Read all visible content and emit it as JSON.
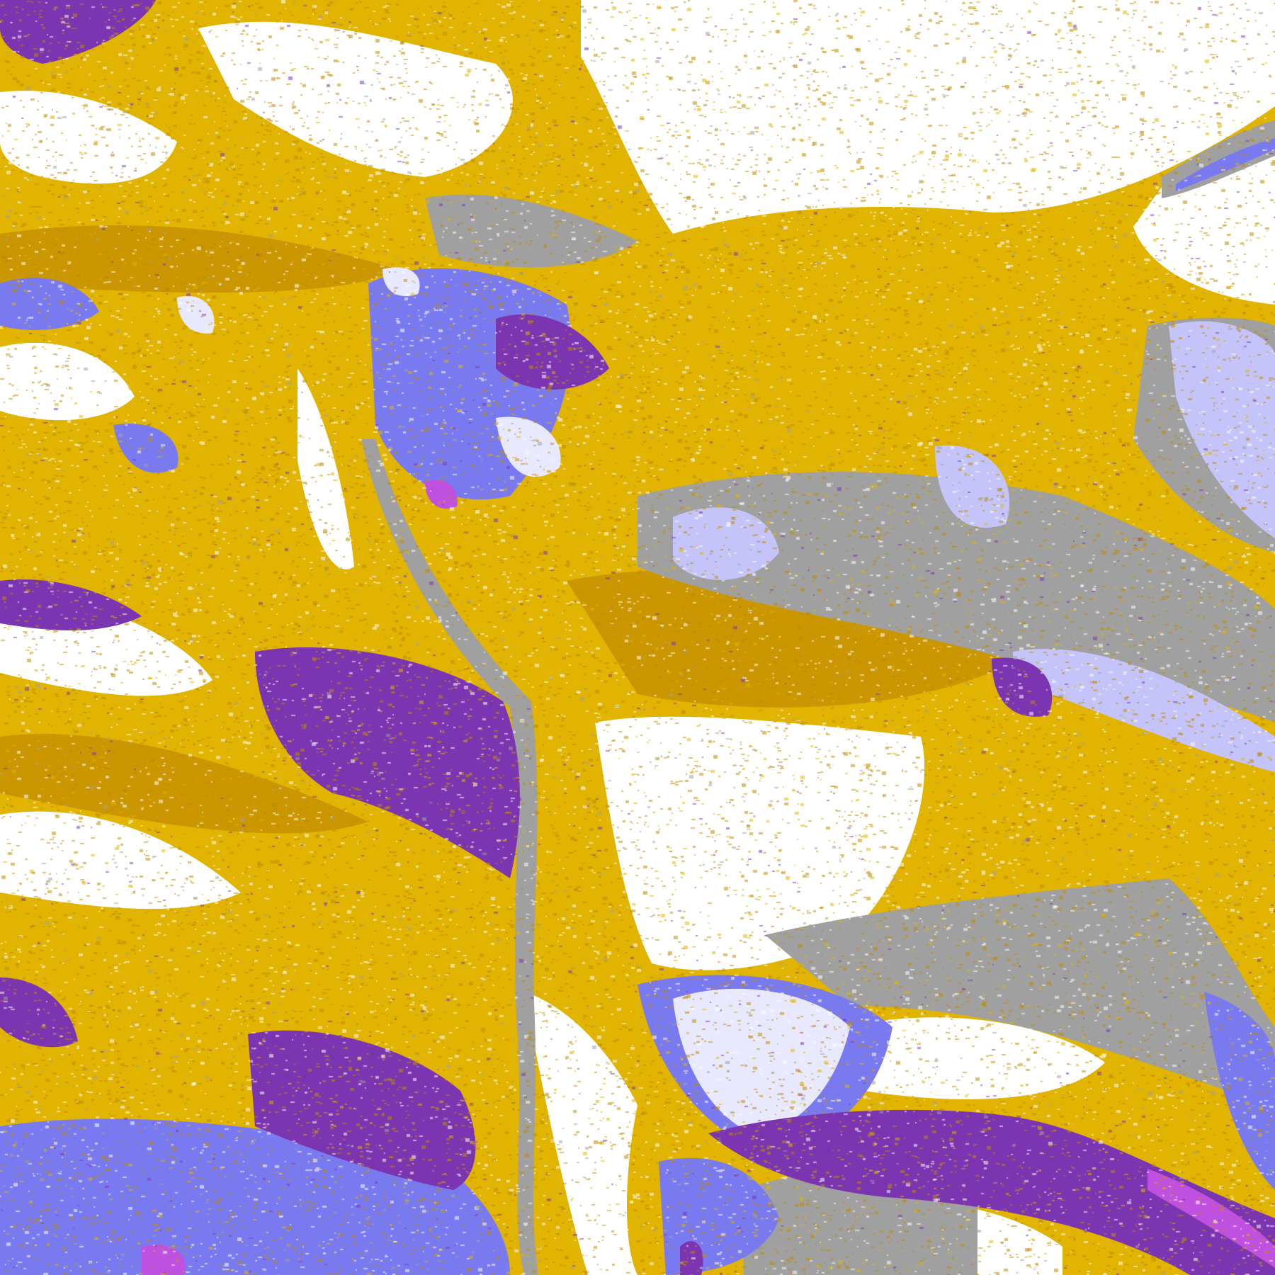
{
  "map": {
    "type": "classified-raster",
    "palette": {
      "background": "#ffffff",
      "gold": "#e0b400",
      "dark_gold": "#c08a00",
      "purple": "#7b35b0",
      "violet_blue": "#7a7af0",
      "lavender": "#e8e8ff",
      "light_periwinkle": "#c4c4fa",
      "gray": "#a0a0a0",
      "magenta": "#c050e0"
    }
  }
}
